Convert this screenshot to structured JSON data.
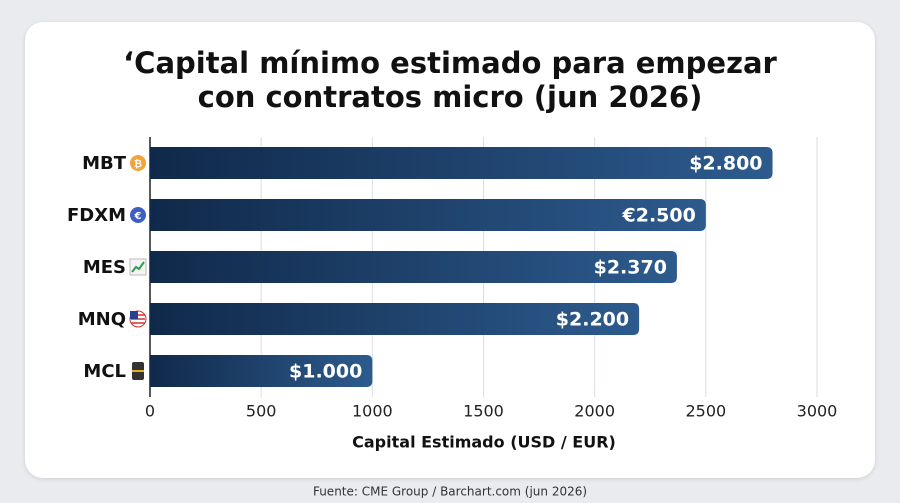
{
  "chart_data": {
    "type": "bar",
    "orientation": "horizontal",
    "title": "‘Capital mínimo estimado para empezar con contratos micro (jun 2026)",
    "categories": [
      "MBT",
      "FDXM",
      "MES",
      "MNQ",
      "MCL"
    ],
    "values": [
      2800,
      2500,
      2370,
      2200,
      1000
    ],
    "value_labels": [
      "$2.800",
      "€2.500",
      "$2.370",
      "$2.200",
      "$1.000"
    ],
    "color": "#10294a",
    "xlim": [
      0,
      3000
    ],
    "xticks": [
      0,
      500,
      1000,
      1500,
      2000,
      2500,
      3000
    ],
    "xlabel": "Capital Estimado (USD / EUR)",
    "grid": true,
    "source": "Fuente: CME Group / Barchart.com (jun 2026)"
  }
}
